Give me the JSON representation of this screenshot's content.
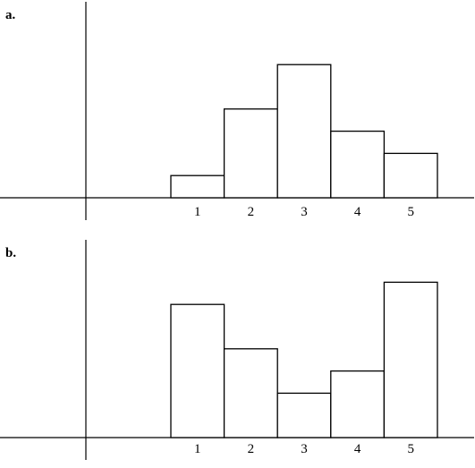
{
  "chart_data": [
    {
      "type": "bar",
      "panel_label": "a.",
      "categories": [
        "1",
        "2",
        "3",
        "4",
        "5"
      ],
      "values": [
        1,
        4,
        6,
        3,
        2
      ],
      "ylim": [
        0,
        6
      ],
      "grid": false
    },
    {
      "type": "bar",
      "panel_label": "b.",
      "categories": [
        "1",
        "2",
        "3",
        "4",
        "5"
      ],
      "values": [
        6,
        4,
        2,
        3,
        7
      ],
      "ylim": [
        0,
        7
      ],
      "grid": false
    }
  ]
}
